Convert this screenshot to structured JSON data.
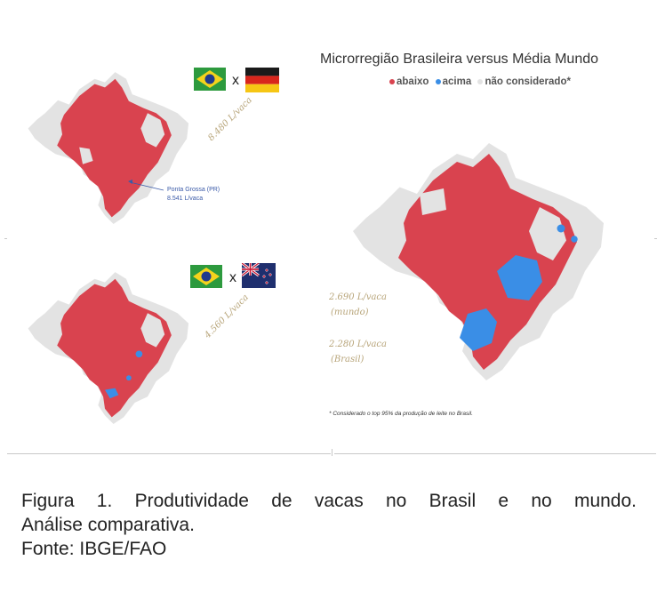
{
  "main_map": {
    "title": "Microrregião Brasileira versus Média Mundo",
    "legend": [
      {
        "label": "abaixo",
        "color": "#d9434f"
      },
      {
        "label": "acima",
        "color": "#3a8ee6"
      },
      {
        "label": "não considerado*",
        "color": "#e3e3e3"
      }
    ],
    "world_value": "2.690 L/vaca",
    "world_label": "(mundo)",
    "brazil_value": "2.280 L/vaca",
    "brazil_label": "(Brasil)",
    "footnote": "* Considerado o top 95% da produção de leite no Brasil."
  },
  "germany_map": {
    "separator": "x",
    "flags": [
      "brazil-flag",
      "germany-flag"
    ],
    "value": "8.480 L/vaca",
    "annotation_place": "Ponta Grossa (PR)",
    "annotation_value": "8.541 L/vaca"
  },
  "nz_map": {
    "separator": "x",
    "flags": [
      "brazil-flag",
      "new-zealand-flag"
    ],
    "value": "4.560 L/vaca"
  },
  "caption": {
    "line1": "Figura 1. Produtividade de vacas no Brasil e no mundo.",
    "line2": "Análise comparativa.",
    "line3": "Fonte: IBGE/FAO"
  }
}
